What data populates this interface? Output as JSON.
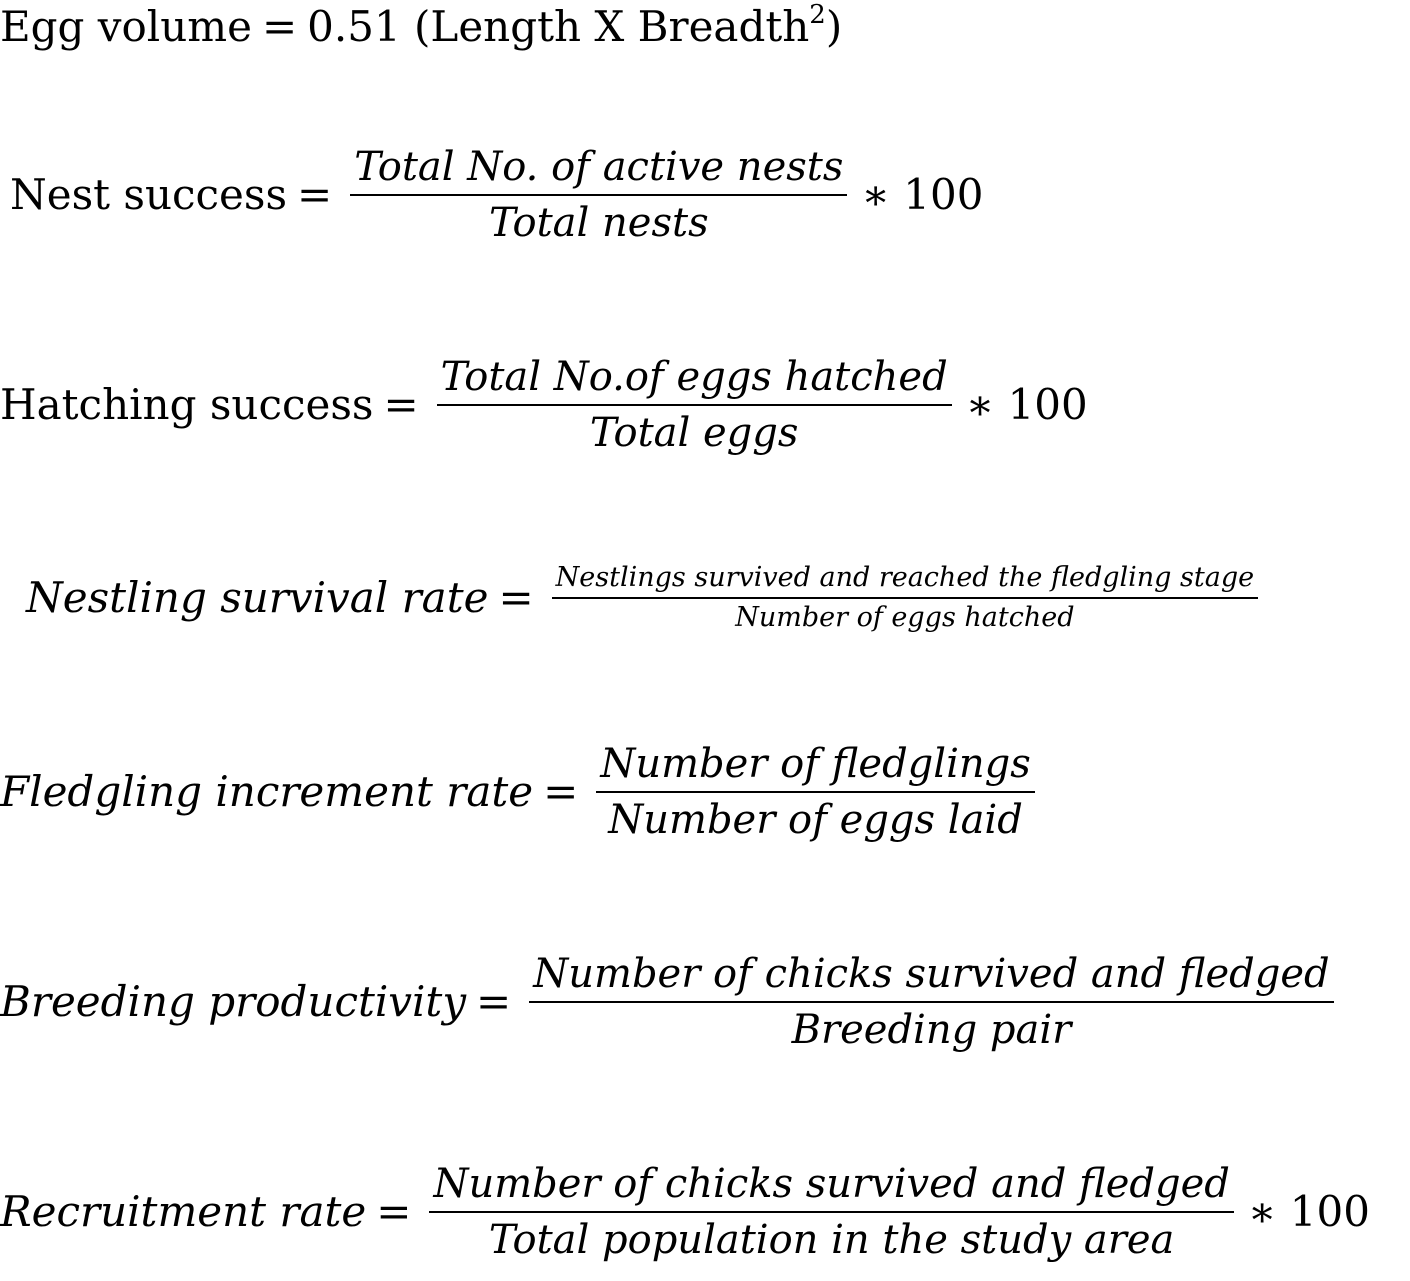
{
  "equations": {
    "egg_volume": {
      "lhs": "Egg volume",
      "op": "=",
      "rhs_prefix": "0.51 (Length X Breadth",
      "exponent": "2",
      "rhs_suffix": ")"
    },
    "nest_success": {
      "lhs": "Nest success",
      "op": "=",
      "numerator": "Total No. of active nests",
      "denominator": "Total nests",
      "multiplier": "∗ 100"
    },
    "hatching_success": {
      "lhs": "Hatching success",
      "op": "=",
      "numerator": "Total No.of eggs hatched",
      "denominator": "Total eggs",
      "multiplier": "∗ 100"
    },
    "nestling_survival_rate": {
      "lhs": "Nestling survival rate",
      "op": "=",
      "numerator": "Nestlings survived and reached the fledgling stage",
      "denominator": "Number of eggs hatched"
    },
    "fledgling_increment_rate": {
      "lhs": "Fledgling increment rate",
      "op": "=",
      "numerator": "Number of fledglings",
      "denominator": "Number of eggs laid"
    },
    "breeding_productivity": {
      "lhs": "Breeding productivity",
      "op": "=",
      "numerator": "Number of chicks survived and fledged",
      "denominator": "Breeding pair"
    },
    "recruitment_rate": {
      "lhs": "Recruitment rate",
      "op": "=",
      "numerator": "Number of chicks survived and fledged",
      "denominator": "Total population in the study area",
      "multiplier": "∗ 100"
    }
  }
}
